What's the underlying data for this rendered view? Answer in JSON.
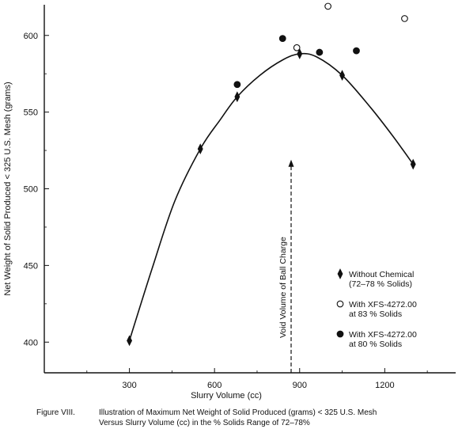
{
  "chart_data": {
    "type": "scatter",
    "xlabel": "Slurry Volume (cc)",
    "ylabel": "Net Weight of Solid Produced < 325 U.S. Mesh (grams)",
    "xlim": [
      0,
      1450
    ],
    "ylim": [
      380,
      620
    ],
    "x_ticks": [
      {
        "value": 300,
        "label": "300"
      },
      {
        "value": 600,
        "label": "600"
      },
      {
        "value": 900,
        "label": "900"
      },
      {
        "value": 1200,
        "label": "1200"
      }
    ],
    "y_ticks": [
      {
        "value": 400,
        "label": "400"
      },
      {
        "value": 450,
        "label": "450"
      },
      {
        "value": 500,
        "label": "500"
      },
      {
        "value": 550,
        "label": "550"
      },
      {
        "value": 600,
        "label": "600"
      }
    ],
    "grid": false,
    "legend_position": "right",
    "series": [
      {
        "name": "Without Chemical (72–78 % Solids)",
        "legend_lines": [
          "Without Chemical",
          "(72–78 % Solids)"
        ],
        "marker": "diamond",
        "points": [
          {
            "x": 300,
            "y": 401
          },
          {
            "x": 550,
            "y": 526
          },
          {
            "x": 680,
            "y": 560
          },
          {
            "x": 900,
            "y": 588
          },
          {
            "x": 1050,
            "y": 574
          },
          {
            "x": 1300,
            "y": 516
          }
        ]
      },
      {
        "name": "With XFS-4272.00 at 83 % Solids",
        "legend_lines": [
          "With XFS-4272.00",
          "at 83 % Solids"
        ],
        "marker": "open-circle",
        "points": [
          {
            "x": 890,
            "y": 592
          },
          {
            "x": 1000,
            "y": 619
          },
          {
            "x": 1270,
            "y": 611
          }
        ]
      },
      {
        "name": "With XFS-4272.00 at 80 % Solids",
        "legend_lines": [
          "With XFS-4272.00",
          "at 80 % Solids"
        ],
        "marker": "filled-circle",
        "points": [
          {
            "x": 680,
            "y": 568
          },
          {
            "x": 840,
            "y": 598
          },
          {
            "x": 970,
            "y": 589
          },
          {
            "x": 1100,
            "y": 590
          }
        ]
      }
    ],
    "fit_curve": {
      "points": [
        {
          "x": 300,
          "y": 401
        },
        {
          "x": 380,
          "y": 448
        },
        {
          "x": 460,
          "y": 492
        },
        {
          "x": 550,
          "y": 526
        },
        {
          "x": 620,
          "y": 545
        },
        {
          "x": 680,
          "y": 560
        },
        {
          "x": 760,
          "y": 574
        },
        {
          "x": 840,
          "y": 584
        },
        {
          "x": 900,
          "y": 588
        },
        {
          "x": 960,
          "y": 586
        },
        {
          "x": 1050,
          "y": 574
        },
        {
          "x": 1150,
          "y": 553
        },
        {
          "x": 1230,
          "y": 534
        },
        {
          "x": 1300,
          "y": 516
        }
      ]
    },
    "annotations": [
      {
        "text": "Void Volume of Ball Charge",
        "x": 870,
        "y_from": 380,
        "y_to": 519,
        "style": "dashed-arrow"
      }
    ],
    "caption": {
      "label": "Figure VIII.",
      "line1": "Illustration of Maximum Net Weight of Solid Produced (grams) < 325 U.S. Mesh",
      "line2": "Versus Slurry Volume (cc) in the % Solids Range of 72–78%"
    }
  }
}
